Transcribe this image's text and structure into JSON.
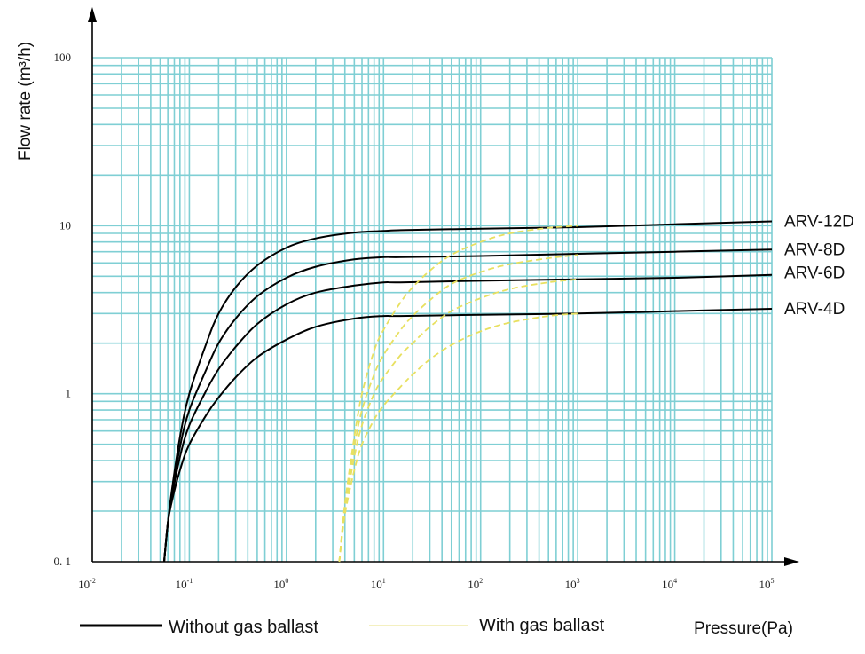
{
  "chart_data": {
    "type": "line",
    "xlabel": "Pressure(Pa)",
    "ylabel": "Flow rate (m³/h)",
    "x_scale": "log",
    "y_scale": "log",
    "xlim": [
      0.01,
      100000
    ],
    "ylim": [
      0.1,
      100
    ],
    "grid": true,
    "x_ticks": [
      {
        "base": "10",
        "exp": "-2"
      },
      {
        "base": "10",
        "exp": "-1"
      },
      {
        "base": "10",
        "exp": "0"
      },
      {
        "base": "10",
        "exp": "1"
      },
      {
        "base": "10",
        "exp": "2"
      },
      {
        "base": "10",
        "exp": "3"
      },
      {
        "base": "10",
        "exp": "4"
      },
      {
        "base": "10",
        "exp": "5"
      }
    ],
    "y_ticks": [
      "0. 1",
      "1",
      "10",
      "100"
    ],
    "legend": [
      {
        "label": "Without gas ballast",
        "color": "#000000",
        "style": "solid"
      },
      {
        "label": "With gas ballast",
        "color": "#e8e060",
        "style": "dashed"
      }
    ],
    "colors": {
      "grid": "#7fcfd4",
      "without": "#000000",
      "with": "#e8e060"
    },
    "series": [
      {
        "name": "ARV-12D",
        "ballast": false,
        "x": [
          0.055,
          0.06,
          0.065,
          0.08,
          0.1,
          0.15,
          0.2,
          0.3,
          0.5,
          1,
          2,
          5,
          10,
          15,
          100,
          1000,
          10000,
          100000
        ],
        "y": [
          0.1,
          0.17,
          0.25,
          0.55,
          1,
          2,
          3,
          4.3,
          5.8,
          7.4,
          8.4,
          9.1,
          9.3,
          9.4,
          9.6,
          9.8,
          10.2,
          10.6
        ]
      },
      {
        "name": "ARV-8D",
        "ballast": false,
        "x": [
          0.055,
          0.06,
          0.065,
          0.08,
          0.1,
          0.15,
          0.2,
          0.3,
          0.5,
          1,
          2,
          5,
          10,
          15,
          100,
          1000,
          10000,
          100000
        ],
        "y": [
          0.1,
          0.17,
          0.24,
          0.48,
          0.8,
          1.4,
          2,
          2.8,
          3.8,
          4.9,
          5.7,
          6.3,
          6.5,
          6.5,
          6.6,
          6.8,
          7.0,
          7.2
        ]
      },
      {
        "name": "ARV-6D",
        "ballast": false,
        "x": [
          0.055,
          0.06,
          0.065,
          0.08,
          0.1,
          0.15,
          0.2,
          0.3,
          0.5,
          1,
          2,
          5,
          10,
          15,
          100,
          1000,
          10000,
          100000
        ],
        "y": [
          0.1,
          0.17,
          0.23,
          0.42,
          0.65,
          1.05,
          1.4,
          1.9,
          2.6,
          3.4,
          4.0,
          4.4,
          4.6,
          4.6,
          4.7,
          4.8,
          4.9,
          5.1
        ]
      },
      {
        "name": "ARV-4D",
        "ballast": false,
        "x": [
          0.055,
          0.06,
          0.065,
          0.08,
          0.1,
          0.15,
          0.2,
          0.3,
          0.5,
          1,
          2,
          5,
          10,
          15,
          100,
          1000,
          10000,
          100000
        ],
        "y": [
          0.1,
          0.17,
          0.22,
          0.35,
          0.5,
          0.75,
          0.95,
          1.25,
          1.65,
          2.1,
          2.5,
          2.8,
          2.9,
          2.9,
          2.95,
          3.0,
          3.1,
          3.2
        ]
      },
      {
        "name": "ARV-12D",
        "ballast": true,
        "x": [
          3.5,
          4,
          5,
          6,
          8,
          10,
          15,
          20,
          30,
          50,
          100,
          200,
          500,
          1000
        ],
        "y": [
          0.1,
          0.22,
          0.55,
          1,
          1.8,
          2.4,
          3.5,
          4.3,
          5.4,
          6.7,
          8,
          9,
          9.7,
          10
        ]
      },
      {
        "name": "ARV-8D",
        "ballast": true,
        "x": [
          3.5,
          4,
          5,
          6,
          8,
          10,
          15,
          20,
          30,
          50,
          100,
          200,
          500,
          1000
        ],
        "y": [
          0.1,
          0.21,
          0.48,
          0.8,
          1.3,
          1.7,
          2.4,
          2.9,
          3.6,
          4.5,
          5.3,
          5.9,
          6.4,
          6.7
        ]
      },
      {
        "name": "ARV-6D",
        "ballast": true,
        "x": [
          3.5,
          4,
          5,
          6,
          8,
          10,
          15,
          20,
          30,
          50,
          100,
          200,
          500,
          1000
        ],
        "y": [
          0.1,
          0.2,
          0.42,
          0.65,
          1.0,
          1.25,
          1.7,
          2.0,
          2.5,
          3.1,
          3.7,
          4.2,
          4.6,
          4.8
        ]
      },
      {
        "name": "ARV-4D",
        "ballast": true,
        "x": [
          3.5,
          4,
          5,
          6,
          8,
          10,
          15,
          20,
          30,
          50,
          100,
          200,
          500,
          1000
        ],
        "y": [
          0.1,
          0.19,
          0.35,
          0.5,
          0.7,
          0.85,
          1.1,
          1.3,
          1.6,
          1.95,
          2.35,
          2.65,
          2.9,
          3.0
        ]
      }
    ]
  }
}
